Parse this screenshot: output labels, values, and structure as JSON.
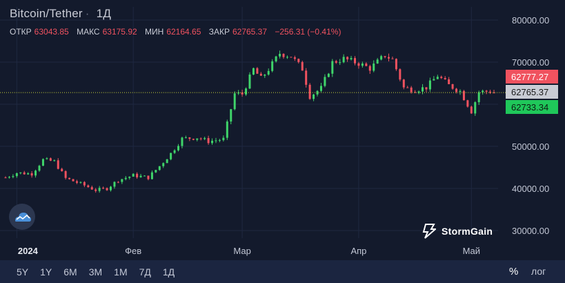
{
  "header": {
    "symbol": "Bitcoin/Tether",
    "separator": "·",
    "timeframe": "1Д",
    "ohlc": {
      "open_label": "ОТКР",
      "open": "63043.85",
      "high_label": "МАКС",
      "high": "63175.92",
      "low_label": "МИН",
      "low": "62164.65",
      "close_label": "ЗАКР",
      "close": "62765.37",
      "change": "−256.31 (−0.41%)"
    }
  },
  "range_buttons": [
    "5Y",
    "1Y",
    "6M",
    "3M",
    "1M",
    "7Д",
    "1Д"
  ],
  "scale_options": {
    "percent": "%",
    "log": "лог"
  },
  "brand": {
    "name": "StormGain"
  },
  "colors": {
    "background": "#131a2c",
    "bull": "#3fd46a",
    "bear": "#f0525f",
    "grid": "#1f2841",
    "price_line": "#c9d23a"
  },
  "icons": {
    "logo": "cloud-logo-icon",
    "brand": "stormgain-logo-icon"
  },
  "chart_data": {
    "type": "candlestick",
    "x_ticks": [
      {
        "label": "2024",
        "date": "2024-01-01",
        "bold": true
      },
      {
        "label": "Фев",
        "date": "2024-02-01"
      },
      {
        "label": "Мар",
        "date": "2024-03-01"
      },
      {
        "label": "Апр",
        "date": "2024-04-01"
      },
      {
        "label": "Май",
        "date": "2024-05-01"
      }
    ],
    "y_ticks": [
      "80000.00",
      "70000.00",
      "60000.00",
      "50000.00",
      "40000.00",
      "30000.00"
    ],
    "y_tick_values": [
      80000,
      70000,
      60000,
      50000,
      40000,
      30000
    ],
    "ylim": [
      28000,
      82000
    ],
    "x_start": "2023-12-29",
    "x_end": "2024-05-07",
    "price_labels": {
      "ask": "62777.27",
      "last": "62765.37",
      "bid": "62733.34",
      "last_value": 62765.37
    },
    "close_points": [
      [
        "2023-12-29",
        42600
      ],
      [
        "2024-01-01",
        43700
      ],
      [
        "2024-01-05",
        43500
      ],
      [
        "2024-01-08",
        46800
      ],
      [
        "2024-01-11",
        46400
      ],
      [
        "2024-01-14",
        42400
      ],
      [
        "2024-01-18",
        41100
      ],
      [
        "2024-01-22",
        39600
      ],
      [
        "2024-01-25",
        40000
      ],
      [
        "2024-01-28",
        42000
      ],
      [
        "2024-02-01",
        43100
      ],
      [
        "2024-02-05",
        42600
      ],
      [
        "2024-02-08",
        45300
      ],
      [
        "2024-02-11",
        48300
      ],
      [
        "2024-02-14",
        51800
      ],
      [
        "2024-02-18",
        52100
      ],
      [
        "2024-02-21",
        51200
      ],
      [
        "2024-02-25",
        51700
      ],
      [
        "2024-02-28",
        62500
      ],
      [
        "2024-03-01",
        62400
      ],
      [
        "2024-03-04",
        68300
      ],
      [
        "2024-03-06",
        66100
      ],
      [
        "2024-03-08",
        68300
      ],
      [
        "2024-03-11",
        72100
      ],
      [
        "2024-03-14",
        71400
      ],
      [
        "2024-03-17",
        68400
      ],
      [
        "2024-03-19",
        61900
      ],
      [
        "2024-03-22",
        63800
      ],
      [
        "2024-03-25",
        69900
      ],
      [
        "2024-03-28",
        70800
      ],
      [
        "2024-04-01",
        69700
      ],
      [
        "2024-04-04",
        68500
      ],
      [
        "2024-04-08",
        71600
      ],
      [
        "2024-04-10",
        70600
      ],
      [
        "2024-04-13",
        63900
      ],
      [
        "2024-04-16",
        63400
      ],
      [
        "2024-04-19",
        64000
      ],
      [
        "2024-04-22",
        66800
      ],
      [
        "2024-04-25",
        64500
      ],
      [
        "2024-04-28",
        63100
      ],
      [
        "2024-05-01",
        58300
      ],
      [
        "2024-05-03",
        62900
      ],
      [
        "2024-05-06",
        63100
      ],
      [
        "2024-05-07",
        62765
      ]
    ]
  }
}
